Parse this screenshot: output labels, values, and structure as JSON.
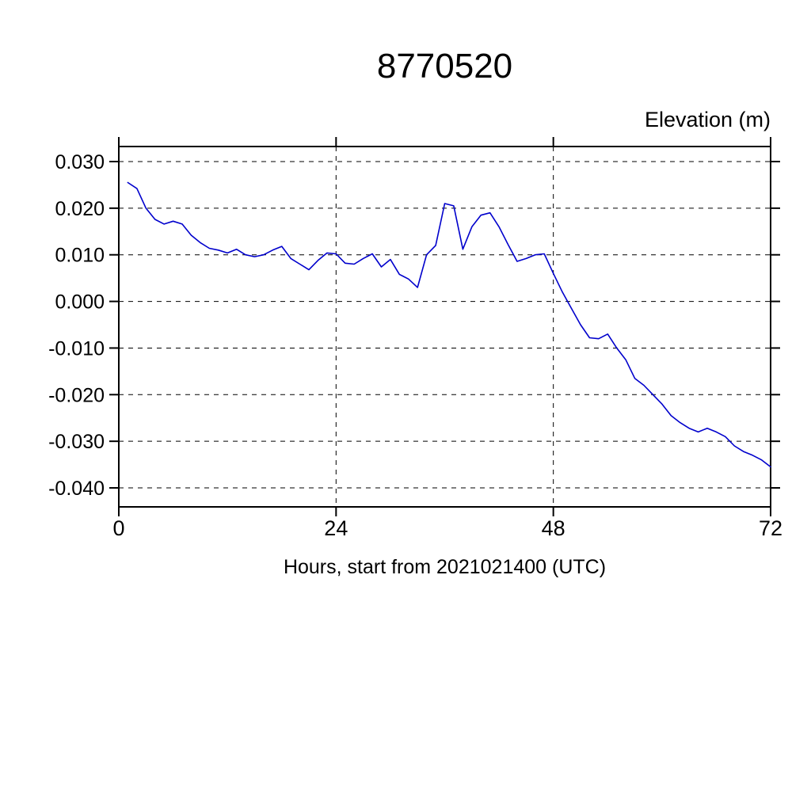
{
  "colors": {
    "background": "#ffffff",
    "axis": "#000000",
    "grid": "#000000",
    "line": "#0000cc"
  },
  "chart_data": {
    "type": "line",
    "title": "8770520",
    "ylabel": "Elevation (m)",
    "xlabel": "Hours, start from 2021021400 (UTC)",
    "xlim": [
      0,
      72
    ],
    "ylim": [
      -0.04,
      0.03
    ],
    "xticks": [
      0,
      24,
      48,
      72
    ],
    "yticks": [
      0.03,
      0.02,
      0.01,
      0.0,
      -0.01,
      -0.02,
      -0.03,
      -0.04
    ],
    "grid": true,
    "legend": false,
    "line_color": "#0000cc",
    "series": [
      {
        "name": "elevation",
        "x": [
          1,
          2,
          3,
          4,
          5,
          6,
          7,
          8,
          9,
          10,
          11,
          12,
          13,
          14,
          15,
          16,
          17,
          18,
          19,
          20,
          21,
          22,
          23,
          24,
          25,
          26,
          27,
          28,
          29,
          30,
          31,
          32,
          33,
          34,
          35,
          36,
          37,
          38,
          39,
          40,
          41,
          42,
          43,
          44,
          45,
          46,
          47,
          48,
          49,
          50,
          51,
          52,
          53,
          54,
          55,
          56,
          57,
          58,
          59,
          60,
          61,
          62,
          63,
          64,
          65,
          66,
          67,
          68,
          69,
          70,
          71,
          72
        ],
        "y": [
          0.0255,
          0.0242,
          0.02,
          0.0176,
          0.0166,
          0.0172,
          0.0166,
          0.0142,
          0.0126,
          0.0114,
          0.011,
          0.0104,
          0.0112,
          0.01,
          0.0096,
          0.01,
          0.011,
          0.0118,
          0.0092,
          0.008,
          0.0068,
          0.0088,
          0.0104,
          0.0102,
          0.0082,
          0.008,
          0.0092,
          0.0102,
          0.0074,
          0.009,
          0.0058,
          0.0048,
          0.003,
          0.01,
          0.012,
          0.021,
          0.0205,
          0.0112,
          0.016,
          0.0185,
          0.019,
          0.016,
          0.0122,
          0.0086,
          0.0092,
          0.01,
          0.0102,
          0.006,
          0.002,
          -0.0015,
          -0.005,
          -0.0078,
          -0.008,
          -0.007,
          -0.01,
          -0.0125,
          -0.0165,
          -0.018,
          -0.02,
          -0.022,
          -0.0245,
          -0.026,
          -0.0272,
          -0.028,
          -0.0272,
          -0.028,
          -0.029,
          -0.031,
          -0.0322,
          -0.033,
          -0.034,
          -0.0355
        ]
      }
    ]
  }
}
